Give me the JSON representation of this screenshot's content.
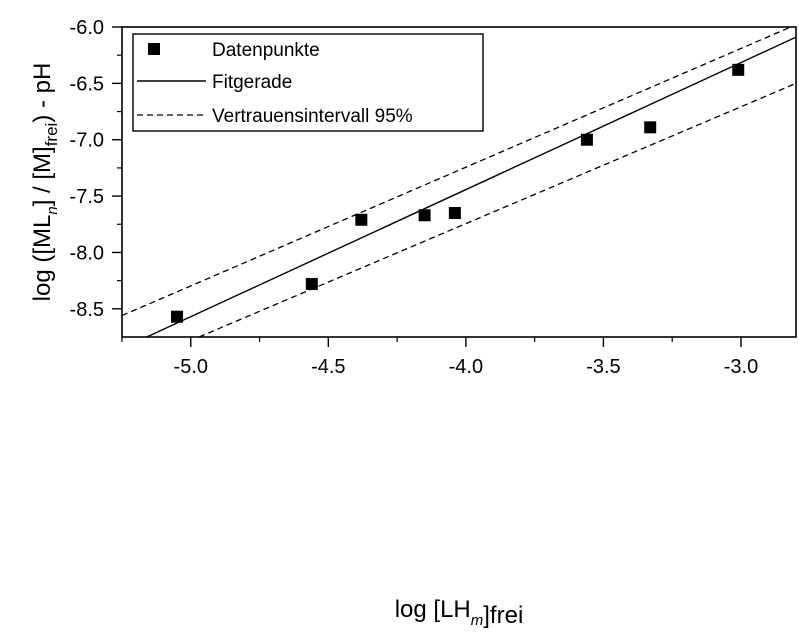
{
  "chart_data": {
    "type": "scatter",
    "xlabel": {
      "pre": "log [LH",
      "sub": "m",
      "post": "]frei"
    },
    "ylabel": {
      "pre": "log ([ML",
      "sub1": "n",
      "mid": "] / [M]",
      "sub2": "frei",
      "post": ") - pH"
    },
    "xlim": [
      -5.25,
      -2.8
    ],
    "ylim": [
      -8.75,
      -6.0
    ],
    "xticks": [
      -5.0,
      -4.5,
      -4.0,
      -3.5,
      -3.0
    ],
    "xtick_labels": [
      "-5.0",
      "-4.5",
      "-4.0",
      "-3.5",
      "-3.0"
    ],
    "yticks": [
      -6.0,
      -6.5,
      -7.0,
      -7.5,
      -8.0,
      -8.5
    ],
    "ytick_labels": [
      "-6.0",
      "-6.5",
      "-7.0",
      "-7.5",
      "-8.0",
      "-8.5"
    ],
    "grid": false,
    "legend_position": "top-left",
    "legend": {
      "points": "Datenpunkte",
      "fit": "Fitgerade",
      "ci": "Vertrauensintervall 95%"
    },
    "points": [
      {
        "x": -5.05,
        "y": -8.57
      },
      {
        "x": -4.56,
        "y": -8.28
      },
      {
        "x": -4.38,
        "y": -7.71
      },
      {
        "x": -4.15,
        "y": -7.67
      },
      {
        "x": -4.04,
        "y": -7.65
      },
      {
        "x": -3.56,
        "y": -7.0
      },
      {
        "x": -3.33,
        "y": -6.89
      },
      {
        "x": -3.01,
        "y": -6.38
      }
    ],
    "fit_line": [
      {
        "x": -5.16,
        "y": -8.75
      },
      {
        "x": -2.8,
        "y": -6.09
      }
    ],
    "ci_upper": [
      {
        "x": -5.25,
        "y": -8.56
      },
      {
        "x": -2.8,
        "y": -5.98
      }
    ],
    "ci_lower": [
      {
        "x": -4.97,
        "y": -8.75
      },
      {
        "x": -2.8,
        "y": -6.5
      }
    ]
  }
}
